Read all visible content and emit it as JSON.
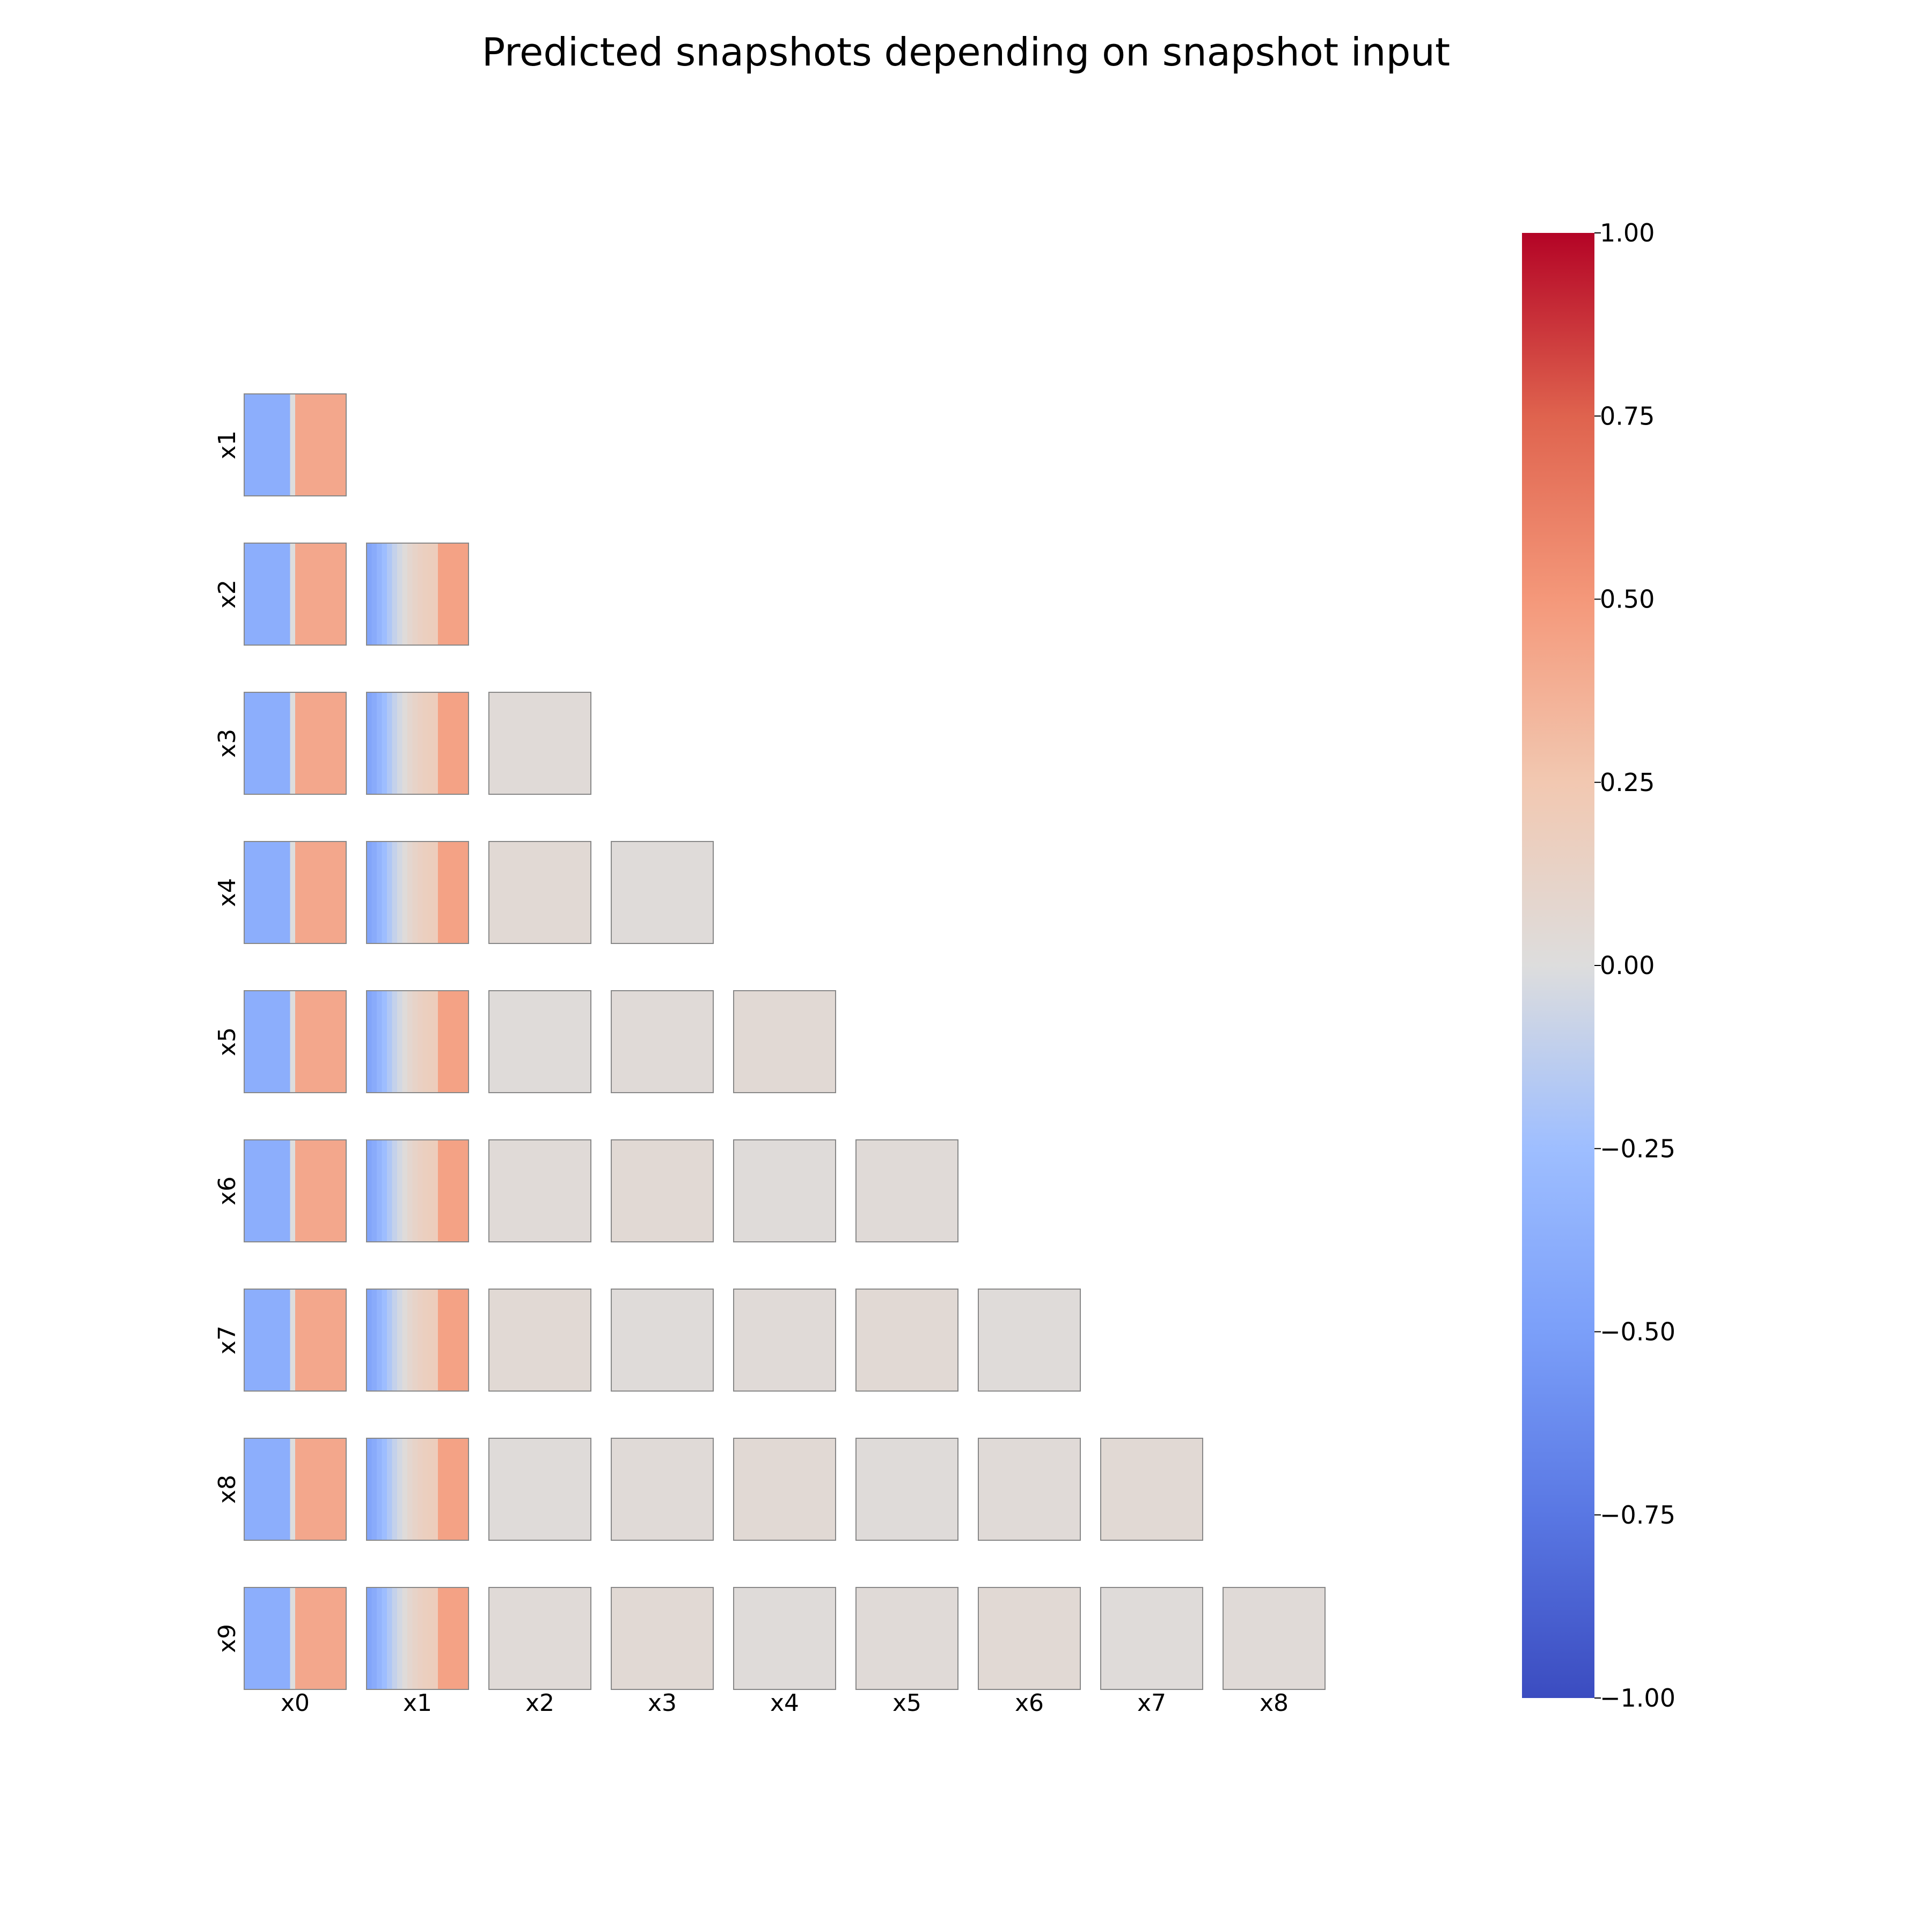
{
  "chart_data": {
    "type": "heatmap",
    "title": "Predicted snapshots depending on snapshot input",
    "layout": "lower-triangular pairwise grid",
    "row_labels": [
      "x1",
      "x2",
      "x3",
      "x4",
      "x5",
      "x6",
      "x7",
      "x8",
      "x9"
    ],
    "col_labels": [
      "x0",
      "x1",
      "x2",
      "x3",
      "x4",
      "x5",
      "x6",
      "x7",
      "x8"
    ],
    "colormap": "coolwarm",
    "colorbar": {
      "range": [
        -1.0,
        1.0
      ],
      "ticks": [
        1.0,
        0.75,
        0.5,
        0.25,
        0.0,
        -0.25,
        -0.5,
        -0.75,
        -1.0
      ],
      "tick_labels": [
        "1.00",
        "0.75",
        "0.50",
        "0.25",
        "0.00",
        "−0.25",
        "−0.50",
        "−0.75",
        "−1.00"
      ],
      "placement": "right"
    },
    "panel_profiles": {
      "note": "each panel is a 2D map; values given as left-to-right column profile, top and bottom rows",
      "x0_column": [
        -0.38,
        -0.38,
        -0.38,
        -0.38,
        -0.38,
        -0.38,
        -0.38,
        -0.38,
        -0.38,
        0.0,
        0.42,
        0.42,
        0.42,
        0.42,
        0.42,
        0.42,
        0.42,
        0.42,
        0.42,
        0.42
      ],
      "x1_column": [
        -0.45,
        -0.4,
        -0.33,
        -0.26,
        -0.18,
        -0.1,
        -0.04,
        0.02,
        0.08,
        0.12,
        0.15,
        0.17,
        0.18,
        0.19,
        0.45,
        0.45,
        0.45,
        0.45,
        0.45,
        0.45
      ],
      "other_columns_near_zero": [
        0.02,
        0.06
      ]
    }
  }
}
